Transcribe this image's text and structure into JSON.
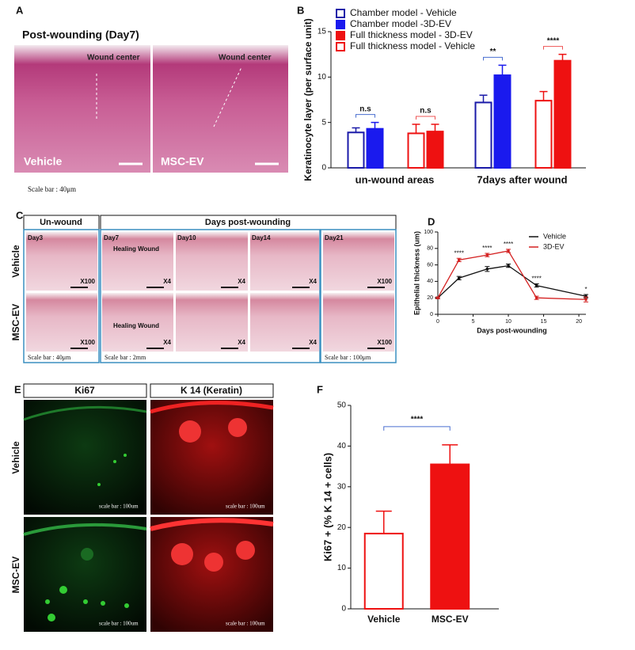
{
  "panels": {
    "a": {
      "letter": "A",
      "title": "Post-wounding (Day7)",
      "images": [
        {
          "label": "Vehicle",
          "annotation": "Wound center"
        },
        {
          "label": "MSC-EV",
          "annotation": "Wound center"
        }
      ],
      "scale": "Scale bar : 40μm"
    },
    "b": {
      "letter": "B"
    },
    "c": {
      "letter": "C",
      "headers": [
        "Un-wound",
        "Days post-wounding"
      ],
      "rows": [
        "Vehicle",
        "MSC-EV"
      ],
      "days": [
        "Day3",
        "Day7",
        "Day10",
        "Day14",
        "Day21"
      ],
      "annotations": [
        "Healing Wound",
        "Healing Wound"
      ],
      "magnifications": [
        [
          "X100",
          "X4",
          "X4",
          "X4",
          "X100"
        ],
        [
          "X100",
          "X4",
          "X4",
          "X4",
          "X100"
        ]
      ],
      "scales": [
        "Scale bar : 40μm",
        "Scale bar : 2mm",
        "Scale bar : 100μm"
      ]
    },
    "d": {
      "letter": "D"
    },
    "e": {
      "letter": "E",
      "headers": [
        "Ki67",
        "K 14 (Keratin)"
      ],
      "rows": [
        "Vehicle",
        "MSC-EV"
      ],
      "scales": [
        "scale bar : 100um",
        "scale bar : 100um",
        "scale bar : 100um",
        "scale bar : 100um"
      ]
    },
    "f": {
      "letter": "F"
    }
  },
  "chart_data": [
    {
      "type": "grouped_bar",
      "ylabel": "Keratinocyte layer (per surface unit)",
      "categories": [
        "un-wound areas",
        "7days after wound"
      ],
      "series": [
        {
          "name": "Chamber model - Vehicle",
          "color": "#1a1aa8",
          "filled": false,
          "values": [
            3.9,
            7.2
          ],
          "errors": [
            0.5,
            0.8
          ]
        },
        {
          "name": "Chamber model -3D-EV",
          "color": "#1a1aee",
          "filled": true,
          "values": [
            4.3,
            10.2
          ],
          "errors": [
            0.7,
            1.1
          ]
        },
        {
          "name": "Full thickness model - 3D-EV",
          "color": "#ee1111",
          "filled": true,
          "values": [
            4.0,
            11.8
          ],
          "errors": [
            0.8,
            0.7
          ]
        },
        {
          "name": "Full thickness model - Vehicle",
          "color": "#ee1111",
          "filled": false,
          "values": [
            3.8,
            7.4
          ],
          "errors": [
            1.0,
            1.0
          ]
        }
      ],
      "significance": [
        [
          "n.s",
          "n.s"
        ],
        [
          "**",
          "****"
        ]
      ],
      "ylim": [
        0,
        15
      ],
      "yticks": [
        0,
        5,
        10,
        15
      ]
    },
    {
      "type": "line",
      "xlabel": "Days post-wounding",
      "ylabel": "Epithelial thickness (um)",
      "x": [
        0,
        3,
        7,
        10,
        14,
        21
      ],
      "series": [
        {
          "name": "Vehicle",
          "color": "#111111",
          "values": [
            20,
            44,
            55,
            59,
            35,
            22
          ],
          "errors": [
            1,
            2,
            3,
            2,
            2,
            2
          ]
        },
        {
          "name": "3D-EV",
          "color": "#d42020",
          "values": [
            20,
            66,
            72,
            77,
            20,
            18
          ],
          "errors": [
            1,
            2,
            2,
            2,
            2,
            3
          ]
        }
      ],
      "annotations": [
        null,
        "****",
        "****",
        "****",
        "****",
        "*"
      ],
      "xlim": [
        0,
        21
      ],
      "xticks": [
        0,
        5,
        10,
        15,
        20
      ],
      "ylim": [
        0,
        100
      ],
      "yticks": [
        0,
        20,
        40,
        60,
        80,
        100
      ]
    },
    {
      "type": "bar",
      "ylabel": "Ki67 + (% K 14 + cells)",
      "categories": [
        "Vehicle",
        "MSC-EV"
      ],
      "values": [
        18.5,
        35.5
      ],
      "errors": [
        5.5,
        4.8
      ],
      "color": "#ee1111",
      "filled": [
        false,
        true
      ],
      "significance": "****",
      "ylim": [
        0,
        50
      ],
      "yticks": [
        0,
        10,
        20,
        30,
        40,
        50
      ]
    }
  ]
}
